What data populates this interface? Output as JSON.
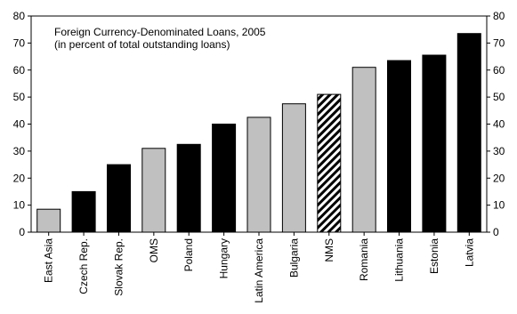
{
  "chart_data": {
    "type": "bar",
    "title": "Foreign Currency-Denominated Loans, 2005",
    "subtitle": "(in percent of total outstanding loans)",
    "xlabel": "",
    "ylabel": "",
    "ylim": [
      0,
      80
    ],
    "yticks": [
      0,
      10,
      20,
      30,
      40,
      50,
      60,
      70,
      80
    ],
    "grid": false,
    "categories": [
      "East Asia",
      "Czech Rep.",
      "Slovak Rep.",
      "OMS",
      "Poland",
      "Hungary",
      "Latin America",
      "Bulgaria",
      "NMS",
      "Romania",
      "Lithuania",
      "Estonia",
      "Latvia"
    ],
    "values": [
      8.5,
      15,
      25,
      31,
      32.5,
      40,
      42.5,
      47.5,
      51,
      61,
      63.5,
      65.5,
      73.5
    ],
    "fills": [
      "gray",
      "black",
      "black",
      "gray",
      "black",
      "black",
      "gray",
      "gray",
      "hatched",
      "gray",
      "black",
      "black",
      "black"
    ],
    "colors": {
      "gray": "#c0c0c0",
      "black": "#000000",
      "stroke": "#000000"
    }
  }
}
